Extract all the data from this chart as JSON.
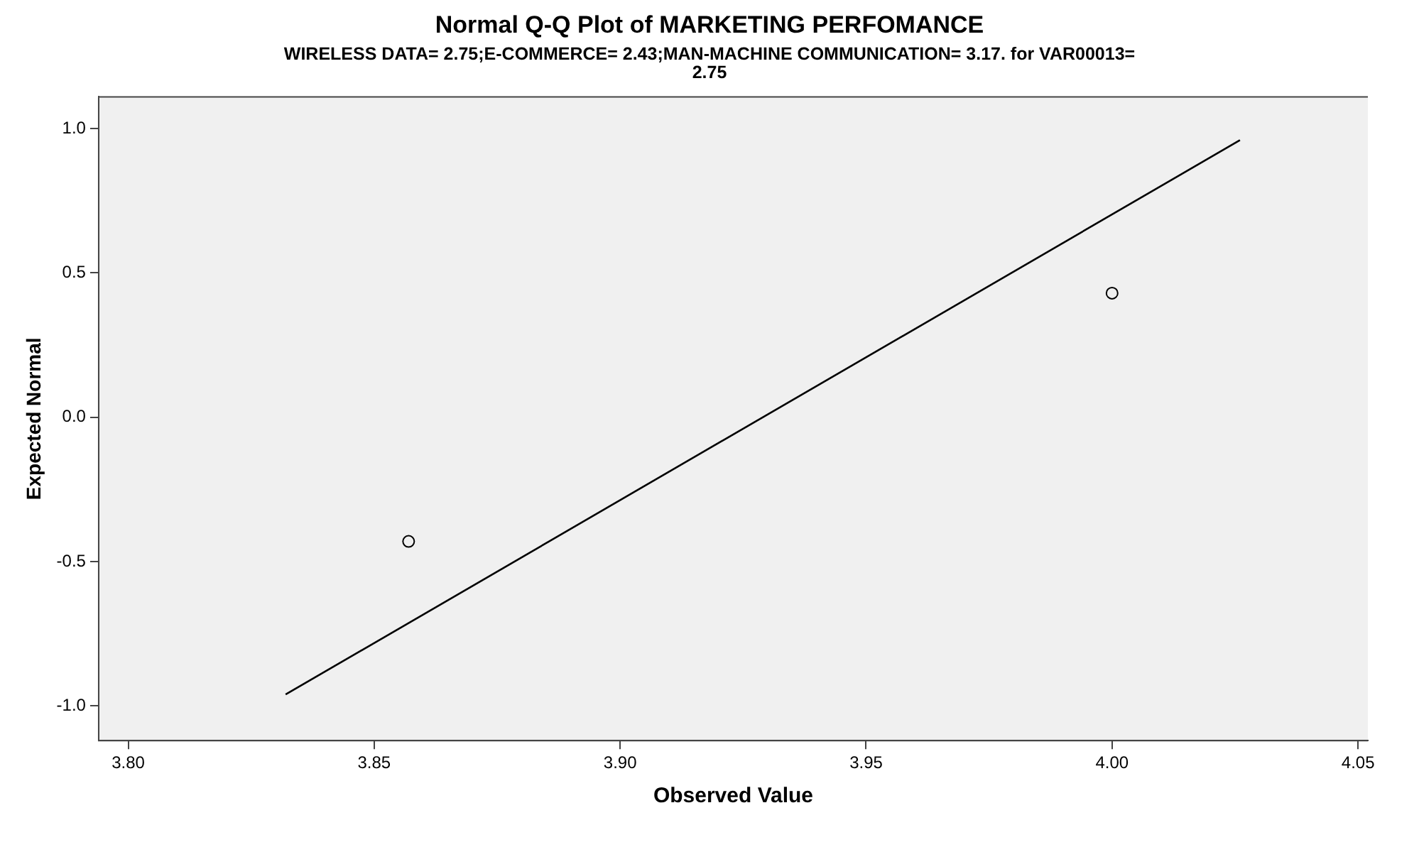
{
  "chart_data": {
    "type": "scatter",
    "title": "Normal Q-Q Plot of MARKETING PERFOMANCE",
    "subtitle": "WIRELESS DATA= 2.75;E-COMMERCE= 2.43;MAN-MACHINE COMMUNICATION= 3.17. for VAR00013= 2.75",
    "xlabel": "Observed Value",
    "ylabel": "Expected Normal",
    "series": [
      {
        "color": "#000000",
        "x": [
          3.857,
          4.0
        ],
        "values": [
          -0.43,
          0.43
        ],
        "marker": "circle"
      },
      {
        "type": "line",
        "color": "#000000",
        "x": [
          3.832,
          4.026
        ],
        "values": [
          -0.96,
          0.96
        ],
        "marker": "none"
      }
    ],
    "xlim": [
      3.794,
      4.052
    ],
    "xticks": [
      {
        "value": 3.8,
        "label": "3.80"
      },
      {
        "value": 3.85,
        "label": "3.85"
      },
      {
        "value": 3.9,
        "label": "3.90"
      },
      {
        "value": 3.95,
        "label": "3.95"
      },
      {
        "value": 4.0,
        "label": "4.00"
      },
      {
        "value": 4.05,
        "label": "4.05"
      }
    ],
    "ylim": [
      -1.12,
      1.11
    ],
    "yticks": [
      {
        "value": -1,
        "label": "-1.0"
      },
      {
        "value": -0.5,
        "label": "-0.5"
      },
      {
        "value": 0,
        "label": "0.0"
      },
      {
        "value": 0.5,
        "label": "0.5"
      },
      {
        "value": 1,
        "label": "1.0"
      }
    ],
    "grid": false,
    "legend": false
  }
}
